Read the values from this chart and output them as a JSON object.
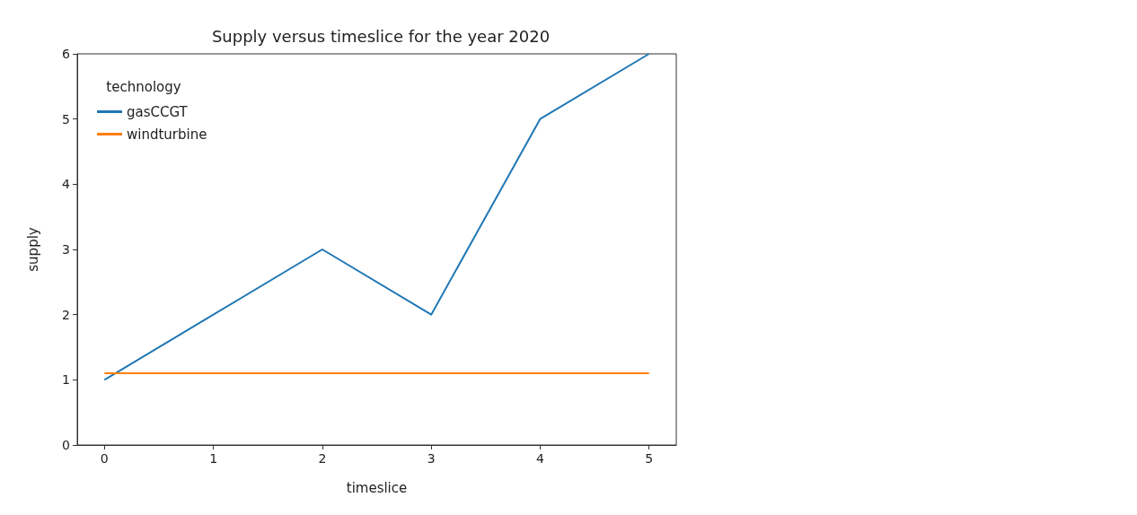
{
  "chart_data": {
    "type": "line",
    "title": "Supply versus timeslice for the year 2020",
    "xlabel": "timeslice",
    "ylabel": "supply",
    "legend_title": "technology",
    "legend": "top left",
    "grid": false,
    "x": [
      0,
      1,
      2,
      3,
      4,
      5
    ],
    "series": [
      {
        "name": "gasCCGT",
        "color": "#1f77b4",
        "values": [
          1,
          2,
          3,
          2,
          5,
          6
        ]
      },
      {
        "name": "windturbine",
        "color": "#ff7f0e",
        "values": [
          1.1,
          1.1,
          1.1,
          1.1,
          1.1,
          1.1
        ]
      }
    ],
    "xlim": [
      -0.25,
      5.25
    ],
    "xticks": [
      0,
      1,
      2,
      3,
      4,
      5
    ],
    "ylim": [
      0,
      6
    ],
    "yticks": [
      0,
      1,
      2,
      3,
      4,
      5,
      6
    ]
  }
}
